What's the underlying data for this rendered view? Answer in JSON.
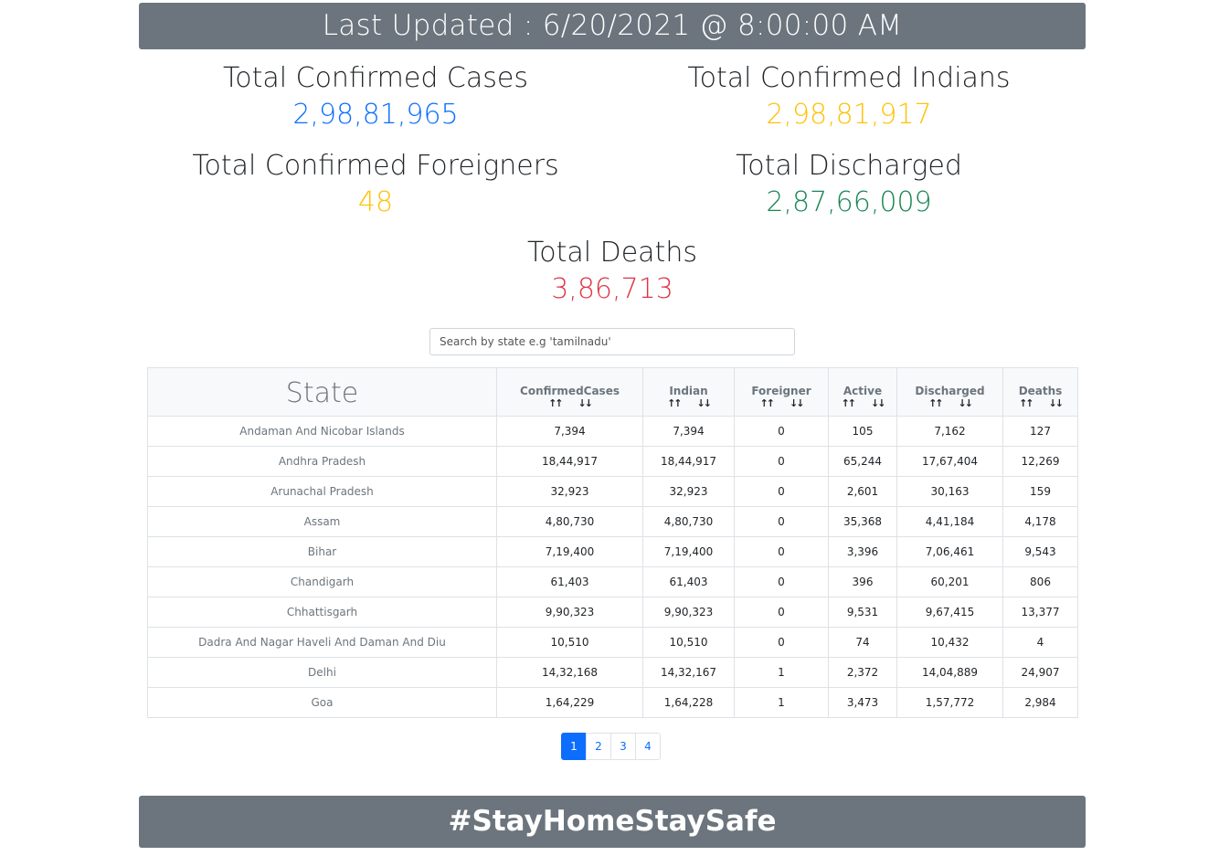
{
  "header": {
    "last_updated": "Last Updated : 6/20/2021 @ 8:00:00 AM"
  },
  "stats": {
    "confirmed_label": "Total Confirmed Cases",
    "confirmed_value": "2,98,81,965",
    "indians_label": "Total Confirmed Indians",
    "indians_value": "2,98,81,917",
    "foreigners_label": "Total Confirmed Foreigners",
    "foreigners_value": "48",
    "discharged_label": "Total Discharged",
    "discharged_value": "2,87,66,009",
    "deaths_label": "Total Deaths",
    "deaths_value": "3,86,713"
  },
  "search": {
    "placeholder": "Search by state e.g 'tamilnadu'"
  },
  "table": {
    "headers": [
      "State",
      "ConfirmedCases",
      "Indian",
      "Foreigner",
      "Active",
      "Discharged",
      "Deaths"
    ],
    "rows": [
      [
        "Andaman And Nicobar Islands",
        "7,394",
        "7,394",
        "0",
        "105",
        "7,162",
        "127"
      ],
      [
        "Andhra Pradesh",
        "18,44,917",
        "18,44,917",
        "0",
        "65,244",
        "17,67,404",
        "12,269"
      ],
      [
        "Arunachal Pradesh",
        "32,923",
        "32,923",
        "0",
        "2,601",
        "30,163",
        "159"
      ],
      [
        "Assam",
        "4,80,730",
        "4,80,730",
        "0",
        "35,368",
        "4,41,184",
        "4,178"
      ],
      [
        "Bihar",
        "7,19,400",
        "7,19,400",
        "0",
        "3,396",
        "7,06,461",
        "9,543"
      ],
      [
        "Chandigarh",
        "61,403",
        "61,403",
        "0",
        "396",
        "60,201",
        "806"
      ],
      [
        "Chhattisgarh",
        "9,90,323",
        "9,90,323",
        "0",
        "9,531",
        "9,67,415",
        "13,377"
      ],
      [
        "Dadra And Nagar Haveli And Daman And Diu",
        "10,510",
        "10,510",
        "0",
        "74",
        "10,432",
        "4"
      ],
      [
        "Delhi",
        "14,32,168",
        "14,32,167",
        "1",
        "2,372",
        "14,04,889",
        "24,907"
      ],
      [
        "Goa",
        "1,64,229",
        "1,64,228",
        "1",
        "3,473",
        "1,57,772",
        "2,984"
      ]
    ]
  },
  "pagination": {
    "pages": [
      "1",
      "2",
      "3",
      "4"
    ],
    "active": "1"
  },
  "footer": {
    "slogan": "#StayHomeStaySafe"
  },
  "colors": {
    "banner": "#6c757d",
    "blue": "#0d6efd",
    "yellow": "#ffc107",
    "green": "#198754",
    "red": "#dc3545"
  }
}
